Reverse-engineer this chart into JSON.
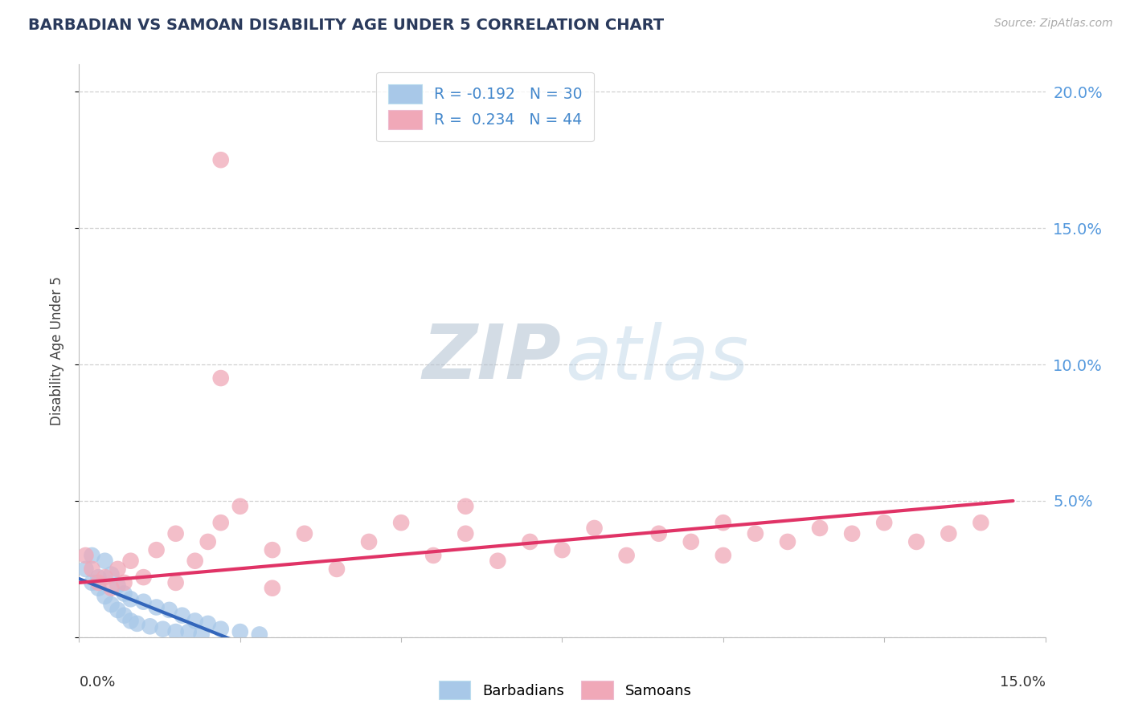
{
  "title": "BARBADIAN VS SAMOAN DISABILITY AGE UNDER 5 CORRELATION CHART",
  "source": "Source: ZipAtlas.com",
  "ylabel": "Disability Age Under 5",
  "xlim": [
    0.0,
    0.15
  ],
  "ylim": [
    0.0,
    0.21
  ],
  "yticks": [
    0.0,
    0.05,
    0.1,
    0.15,
    0.2
  ],
  "ytick_labels": [
    "",
    "5.0%",
    "10.0%",
    "15.0%",
    "20.0%"
  ],
  "bg_color": "#ffffff",
  "grid_color": "#c8c8c8",
  "barbadian_color": "#a8c8e8",
  "samoan_color": "#f0a8b8",
  "barbadian_line_color": "#3366bb",
  "samoan_line_color": "#e03366",
  "right_tick_color": "#5599dd",
  "title_color": "#2a3a5c",
  "source_color": "#aaaaaa",
  "legend_text_color": "#4488cc",
  "barbadian_x": [
    0.001,
    0.002,
    0.002,
    0.003,
    0.003,
    0.004,
    0.004,
    0.005,
    0.005,
    0.006,
    0.006,
    0.007,
    0.007,
    0.008,
    0.008,
    0.009,
    0.01,
    0.011,
    0.012,
    0.013,
    0.014,
    0.015,
    0.016,
    0.017,
    0.018,
    0.019,
    0.02,
    0.022,
    0.025,
    0.028
  ],
  "barbadian_y": [
    0.025,
    0.02,
    0.03,
    0.022,
    0.018,
    0.015,
    0.028,
    0.012,
    0.023,
    0.01,
    0.019,
    0.008,
    0.016,
    0.006,
    0.014,
    0.005,
    0.013,
    0.004,
    0.011,
    0.003,
    0.01,
    0.002,
    0.008,
    0.002,
    0.006,
    0.001,
    0.005,
    0.003,
    0.002,
    0.001
  ],
  "samoan_x": [
    0.022,
    0.022,
    0.001,
    0.002,
    0.003,
    0.004,
    0.005,
    0.006,
    0.007,
    0.008,
    0.01,
    0.012,
    0.015,
    0.018,
    0.02,
    0.022,
    0.025,
    0.03,
    0.035,
    0.04,
    0.045,
    0.05,
    0.055,
    0.06,
    0.065,
    0.07,
    0.075,
    0.08,
    0.085,
    0.09,
    0.095,
    0.1,
    0.105,
    0.11,
    0.115,
    0.12,
    0.125,
    0.13,
    0.135,
    0.14,
    0.015,
    0.03,
    0.06,
    0.1
  ],
  "samoan_y": [
    0.175,
    0.095,
    0.03,
    0.025,
    0.02,
    0.022,
    0.018,
    0.025,
    0.02,
    0.028,
    0.022,
    0.032,
    0.038,
    0.028,
    0.035,
    0.042,
    0.048,
    0.032,
    0.038,
    0.025,
    0.035,
    0.042,
    0.03,
    0.038,
    0.028,
    0.035,
    0.032,
    0.04,
    0.03,
    0.038,
    0.035,
    0.042,
    0.038,
    0.035,
    0.04,
    0.038,
    0.042,
    0.035,
    0.038,
    0.042,
    0.02,
    0.018,
    0.048,
    0.03
  ]
}
